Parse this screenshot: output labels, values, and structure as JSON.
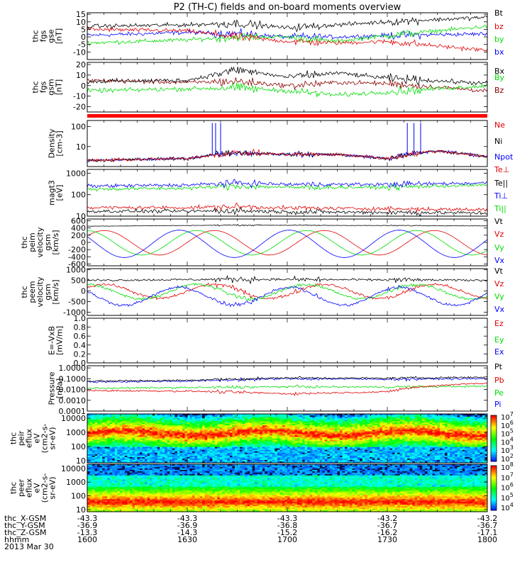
{
  "title": "P2 (TH-C) fields and on-board moments overview",
  "colors": {
    "black": "#000000",
    "red": "#e00000",
    "green": "#00dd00",
    "blue": "#0000ff",
    "darkred": "#8b0000",
    "brightred": "#ff0000"
  },
  "chart_data": [
    {
      "id": "fgs-gse",
      "type": "line",
      "ylabel": [
        "thc",
        "fgs",
        "gse",
        "[nT]"
      ],
      "ylim": [
        -15,
        16
      ],
      "yticks": [
        "15",
        "10",
        "5",
        "0",
        "-5",
        "-10"
      ],
      "ytick_values": [
        15,
        10,
        5,
        0,
        -5,
        -10
      ],
      "series": [
        {
          "name": "Bt",
          "color": "black",
          "x": [
            1600,
            1630,
            1645,
            1700,
            1715,
            1730,
            1800
          ],
          "values": [
            7,
            8,
            9,
            6,
            8,
            10,
            13
          ]
        },
        {
          "name": "bz",
          "color": "red",
          "x": [
            1600,
            1630,
            1645,
            1700,
            1715,
            1730,
            1800
          ],
          "values": [
            5,
            4,
            0,
            -3,
            -4,
            -3,
            -9
          ]
        },
        {
          "name": "by",
          "color": "green",
          "x": [
            1600,
            1630,
            1645,
            1700,
            1715,
            1730,
            1800
          ],
          "values": [
            -4,
            -2,
            0,
            0,
            -3,
            1,
            7
          ]
        },
        {
          "name": "bx",
          "color": "blue",
          "x": [
            1600,
            1630,
            1645,
            1700,
            1715,
            1730,
            1800
          ],
          "values": [
            1,
            3,
            2,
            0,
            0,
            1,
            2
          ]
        }
      ]
    },
    {
      "id": "fgs-gsm",
      "type": "line",
      "ylabel": [
        "thc",
        "fgs",
        "gsm",
        "[nT]"
      ],
      "ylim": [
        -25,
        22
      ],
      "yticks": [
        "20",
        "10",
        "0",
        "-10",
        "-20"
      ],
      "ytick_values": [
        20,
        10,
        0,
        -10,
        -20
      ],
      "series": [
        {
          "name": "Bx",
          "color": "black",
          "x": [
            1600,
            1630,
            1645,
            1700,
            1715,
            1730,
            1800
          ],
          "values": [
            4,
            5,
            15,
            8,
            12,
            7,
            2
          ]
        },
        {
          "name": "By",
          "color": "green",
          "x": [
            1600,
            1630,
            1645,
            1700,
            1715,
            1730,
            1800
          ],
          "values": [
            -5,
            -3,
            -2,
            -5,
            -9,
            -6,
            0
          ]
        },
        {
          "name": "Bz",
          "color": "darkred",
          "x": [
            1600,
            1630,
            1645,
            1700,
            1715,
            1730,
            1800
          ],
          "values": [
            5,
            3,
            4,
            0,
            3,
            2,
            -5
          ]
        }
      ]
    },
    {
      "id": "density",
      "type": "line",
      "log": true,
      "ylabel": [
        "Density",
        "[cm-3]"
      ],
      "ylim": [
        1,
        200
      ],
      "yticks": [
        "100",
        "10"
      ],
      "ytick_values": [
        100,
        10
      ],
      "series": [
        {
          "name": "Ne",
          "color": "red",
          "x": [
            1600,
            1630,
            1645,
            1700,
            1715,
            1730,
            1745,
            1800
          ],
          "values": [
            2,
            2.5,
            5,
            4,
            4,
            2.5,
            6,
            3
          ]
        },
        {
          "name": "Ni",
          "color": "black",
          "x": [
            1600,
            1630,
            1645,
            1700,
            1715,
            1730,
            1745,
            1800
          ],
          "values": [
            2,
            2.5,
            5,
            4,
            4,
            2.5,
            6,
            3
          ]
        },
        {
          "name": "Npot",
          "color": "blue",
          "x": [
            1600,
            1630,
            1645,
            1700,
            1715,
            1730,
            1745,
            1800
          ],
          "values": [
            2,
            2.5,
            5,
            4,
            4,
            2.5,
            6,
            3
          ]
        }
      ]
    },
    {
      "id": "temperature",
      "type": "line",
      "log": true,
      "ylabel": [
        "magt3",
        "[eV]"
      ],
      "ylim": [
        10,
        1500
      ],
      "yticks": [
        "1000",
        "100",
        "10"
      ],
      "ytick_values": [
        1000,
        100,
        10
      ],
      "series": [
        {
          "name": "Te⊥",
          "color": "red",
          "x": [
            1600,
            1630,
            1645,
            1700,
            1730,
            1800
          ],
          "values": [
            25,
            25,
            28,
            24,
            22,
            20
          ]
        },
        {
          "name": "Te||",
          "color": "black",
          "x": [
            1600,
            1630,
            1645,
            1700,
            1730,
            1800
          ],
          "values": [
            17,
            17,
            18,
            16,
            15,
            14
          ]
        },
        {
          "name": "Ti⊥",
          "color": "blue",
          "x": [
            1600,
            1630,
            1645,
            1700,
            1730,
            1800
          ],
          "values": [
            250,
            280,
            350,
            300,
            300,
            350
          ]
        },
        {
          "name": "Ti||",
          "color": "green",
          "x": [
            1600,
            1630,
            1645,
            1700,
            1730,
            1800
          ],
          "values": [
            180,
            200,
            250,
            220,
            220,
            280
          ]
        }
      ]
    },
    {
      "id": "peim-velocity",
      "type": "line",
      "ylabel": [
        "thc",
        "peim",
        "velocity",
        "gsm",
        "[km/s]"
      ],
      "ylim": [
        -650,
        650
      ],
      "yticks": [
        "600",
        "400",
        "200",
        "0",
        "-200",
        "-400",
        "-600"
      ],
      "ytick_values": [
        600,
        400,
        200,
        0,
        -200,
        -400,
        -600
      ],
      "series": [
        {
          "name": "Vt",
          "color": "black",
          "x": [
            1600,
            1645,
            1800
          ],
          "values": [
            450,
            480,
            460
          ]
        },
        {
          "name": "Vz",
          "color": "red",
          "period_min": 33,
          "amplitude": 340,
          "phase": 0.6,
          "offset": -10
        },
        {
          "name": "Vy",
          "color": "green",
          "period_min": 33,
          "amplitude": 340,
          "phase": 1.6,
          "offset": -10
        },
        {
          "name": "Vx",
          "color": "blue",
          "period_min": 33,
          "amplitude": 380,
          "phase": 2.6,
          "offset": -40
        }
      ]
    },
    {
      "id": "peem-velocity",
      "type": "line",
      "ylabel": [
        "thc",
        "peem",
        "velocity",
        "gsm",
        "[km/s]"
      ],
      "ylim": [
        -1150,
        1050
      ],
      "yticks": [
        "1000",
        "500",
        "0",
        "-500",
        "-1000"
      ],
      "ytick_values": [
        1000,
        500,
        0,
        -500,
        -1000
      ],
      "series": [
        {
          "name": "Vt",
          "color": "black",
          "x": [
            1600,
            1645,
            1800
          ],
          "values": [
            500,
            550,
            500
          ]
        },
        {
          "name": "Vz",
          "color": "red",
          "period_min": 33,
          "amplitude": 330,
          "phase": 0.6,
          "offset": -20
        },
        {
          "name": "Vy",
          "color": "green",
          "period_min": 33,
          "amplitude": 340,
          "phase": 1.6,
          "offset": -30
        },
        {
          "name": "Vx",
          "color": "blue",
          "period_min": 33,
          "amplitude": 420,
          "phase": 2.6,
          "offset": -250
        }
      ]
    },
    {
      "id": "e-vxb",
      "type": "line",
      "ylabel": [
        "E=-VxB",
        "[mV/m]"
      ],
      "ylim": [
        0,
        1
      ],
      "yticks": [
        "1.0",
        "0.8",
        "0.6",
        "0.4",
        "0.2",
        "0.0"
      ],
      "ytick_values": [
        1.0,
        0.8,
        0.6,
        0.4,
        0.2,
        0.0
      ],
      "series": [
        {
          "name": "Ez",
          "color": "red",
          "values": []
        },
        {
          "name": "Ey",
          "color": "green",
          "values": []
        },
        {
          "name": "Ex",
          "color": "blue",
          "values": []
        }
      ]
    },
    {
      "id": "pressure",
      "type": "line",
      "log": true,
      "ylabel": [
        "Pressure",
        "[nPa]"
      ],
      "ylim": [
        0.0001,
        1.6
      ],
      "yticks": [
        "1.0000",
        "0.1000",
        "0.0100",
        "0.0010",
        "0.0001"
      ],
      "ytick_values": [
        1.0,
        0.1,
        0.01,
        0.001,
        0.0001
      ],
      "series": [
        {
          "name": "Pt",
          "color": "black",
          "x": [
            1600,
            1630,
            1700,
            1730,
            1800
          ],
          "values": [
            0.06,
            0.07,
            0.12,
            0.11,
            0.14
          ]
        },
        {
          "name": "Pb",
          "color": "red",
          "x": [
            1600,
            1630,
            1700,
            1730,
            1800
          ],
          "values": [
            0.008,
            0.007,
            0.004,
            0.006,
            0.04
          ]
        },
        {
          "name": "Pe",
          "color": "green",
          "x": [
            1600,
            1630,
            1700,
            1730,
            1800
          ],
          "values": [
            0.013,
            0.015,
            0.018,
            0.017,
            0.02
          ]
        },
        {
          "name": "Pi",
          "color": "blue",
          "x": [
            1600,
            1630,
            1700,
            1730,
            1800
          ],
          "values": [
            0.05,
            0.06,
            0.1,
            0.09,
            0.1
          ]
        }
      ]
    },
    {
      "id": "peir-spectrogram",
      "type": "heatmap",
      "ylabel": [
        "thc",
        "peir",
        "eflux",
        "eV",
        "(cm2-s-",
        "sr-eV)"
      ],
      "ylim": [
        7,
        20000
      ],
      "yticks": [
        "10000",
        "1000",
        "100",
        "10"
      ],
      "ytick_values": [
        10000,
        1000,
        100,
        10
      ],
      "colorbar": {
        "labels": [
          "10",
          "10",
          "10",
          "10",
          "10",
          "10"
        ],
        "exponents": [
          "7",
          "6",
          "5",
          "4",
          "3",
          "2"
        ],
        "range": [
          100.0,
          10000000.0
        ]
      }
    },
    {
      "id": "peer-spectrogram",
      "type": "heatmap",
      "ylabel": [
        "thc",
        "peer",
        "eflux",
        "eV",
        "(cm2-s-",
        "sr-eV)"
      ],
      "ylim": [
        7,
        20000
      ],
      "yticks": [
        "10000",
        "1000",
        "100",
        "10"
      ],
      "ytick_values": [
        10000,
        1000,
        100,
        10
      ],
      "colorbar": {
        "labels": [
          "10",
          "10",
          "10",
          "10",
          "10"
        ],
        "exponents": [
          "8",
          "7",
          "6",
          "5",
          "4"
        ],
        "range": [
          1000.0,
          200000000.0
        ]
      }
    }
  ],
  "x_axis": {
    "rows": [
      {
        "label": "thc_X-GSM",
        "values": [
          "-43.3",
          "-43.3",
          "-43.3",
          "-43.2",
          "-43.2"
        ]
      },
      {
        "label": "thc_Y-GSM",
        "values": [
          "-36.9",
          "-36.9",
          "-36.8",
          "-36.7",
          "-36.7"
        ]
      },
      {
        "label": "thc_Z-GSM",
        "values": [
          "-13.3",
          "-14.3",
          "-15.2",
          "-16.2",
          "-17.1"
        ]
      },
      {
        "label": "hhmm",
        "values": [
          "1600",
          "1630",
          "1700",
          "1730",
          "1800"
        ]
      }
    ],
    "date": "2013 Mar 30",
    "range_min": [
      0,
      120
    ]
  }
}
